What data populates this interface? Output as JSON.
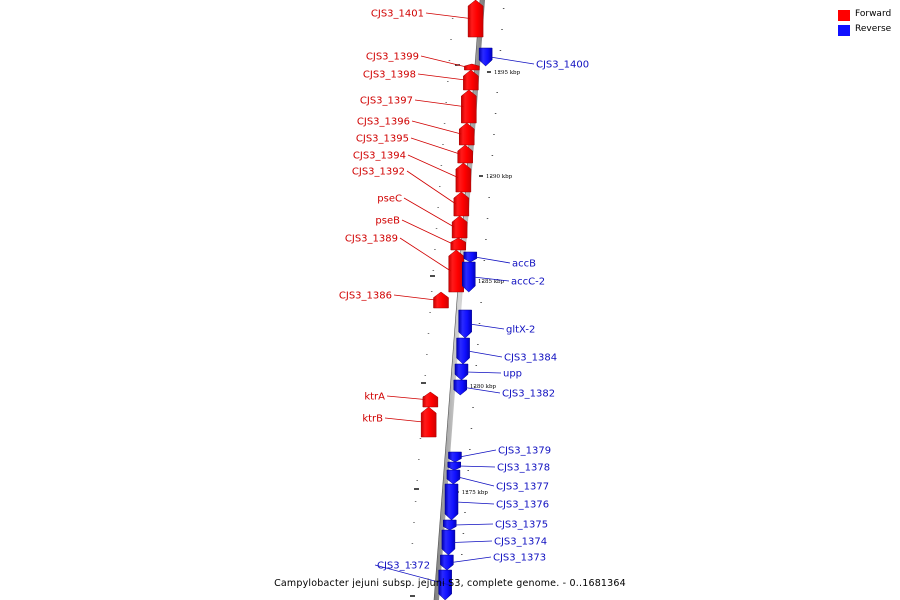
{
  "legend": {
    "forward_label": "Forward",
    "reverse_label": "Reverse",
    "forward_color": "#ff0000",
    "reverse_color": "#1010ff"
  },
  "caption": "Campylobacter jejuni subsp. jejuni S3, complete genome. - 0..1681364",
  "ticks": [
    {
      "label": "1295 kbp"
    },
    {
      "label": "1290 kbp"
    },
    {
      "label": "1285 kbp"
    },
    {
      "label": "1280 kbp"
    },
    {
      "label": "1275 kbp"
    }
  ],
  "genes": [
    {
      "name": "CJS3_1401",
      "strand": "forward"
    },
    {
      "name": "CJS3_1400",
      "strand": "reverse"
    },
    {
      "name": "CJS3_1399",
      "strand": "forward"
    },
    {
      "name": "CJS3_1398",
      "strand": "forward"
    },
    {
      "name": "CJS3_1397",
      "strand": "forward"
    },
    {
      "name": "CJS3_1396",
      "strand": "forward"
    },
    {
      "name": "CJS3_1395",
      "strand": "forward"
    },
    {
      "name": "CJS3_1394",
      "strand": "forward"
    },
    {
      "name": "CJS3_1392",
      "strand": "forward"
    },
    {
      "name": "pseC",
      "strand": "forward"
    },
    {
      "name": "pseB",
      "strand": "forward"
    },
    {
      "name": "CJS3_1389",
      "strand": "forward"
    },
    {
      "name": "accB",
      "strand": "reverse"
    },
    {
      "name": "accC-2",
      "strand": "reverse"
    },
    {
      "name": "CJS3_1386",
      "strand": "forward"
    },
    {
      "name": "gltX-2",
      "strand": "reverse"
    },
    {
      "name": "CJS3_1384",
      "strand": "reverse"
    },
    {
      "name": "upp",
      "strand": "reverse"
    },
    {
      "name": "CJS3_1382",
      "strand": "reverse"
    },
    {
      "name": "ktrA",
      "strand": "forward"
    },
    {
      "name": "ktrB",
      "strand": "forward"
    },
    {
      "name": "CJS3_1379",
      "strand": "reverse"
    },
    {
      "name": "CJS3_1378",
      "strand": "reverse"
    },
    {
      "name": "CJS3_1377",
      "strand": "reverse"
    },
    {
      "name": "CJS3_1376",
      "strand": "reverse"
    },
    {
      "name": "CJS3_1375",
      "strand": "reverse"
    },
    {
      "name": "CJS3_1374",
      "strand": "reverse"
    },
    {
      "name": "CJS3_1373",
      "strand": "reverse"
    },
    {
      "name": "CJS3_1372",
      "strand": "reverse"
    }
  ]
}
